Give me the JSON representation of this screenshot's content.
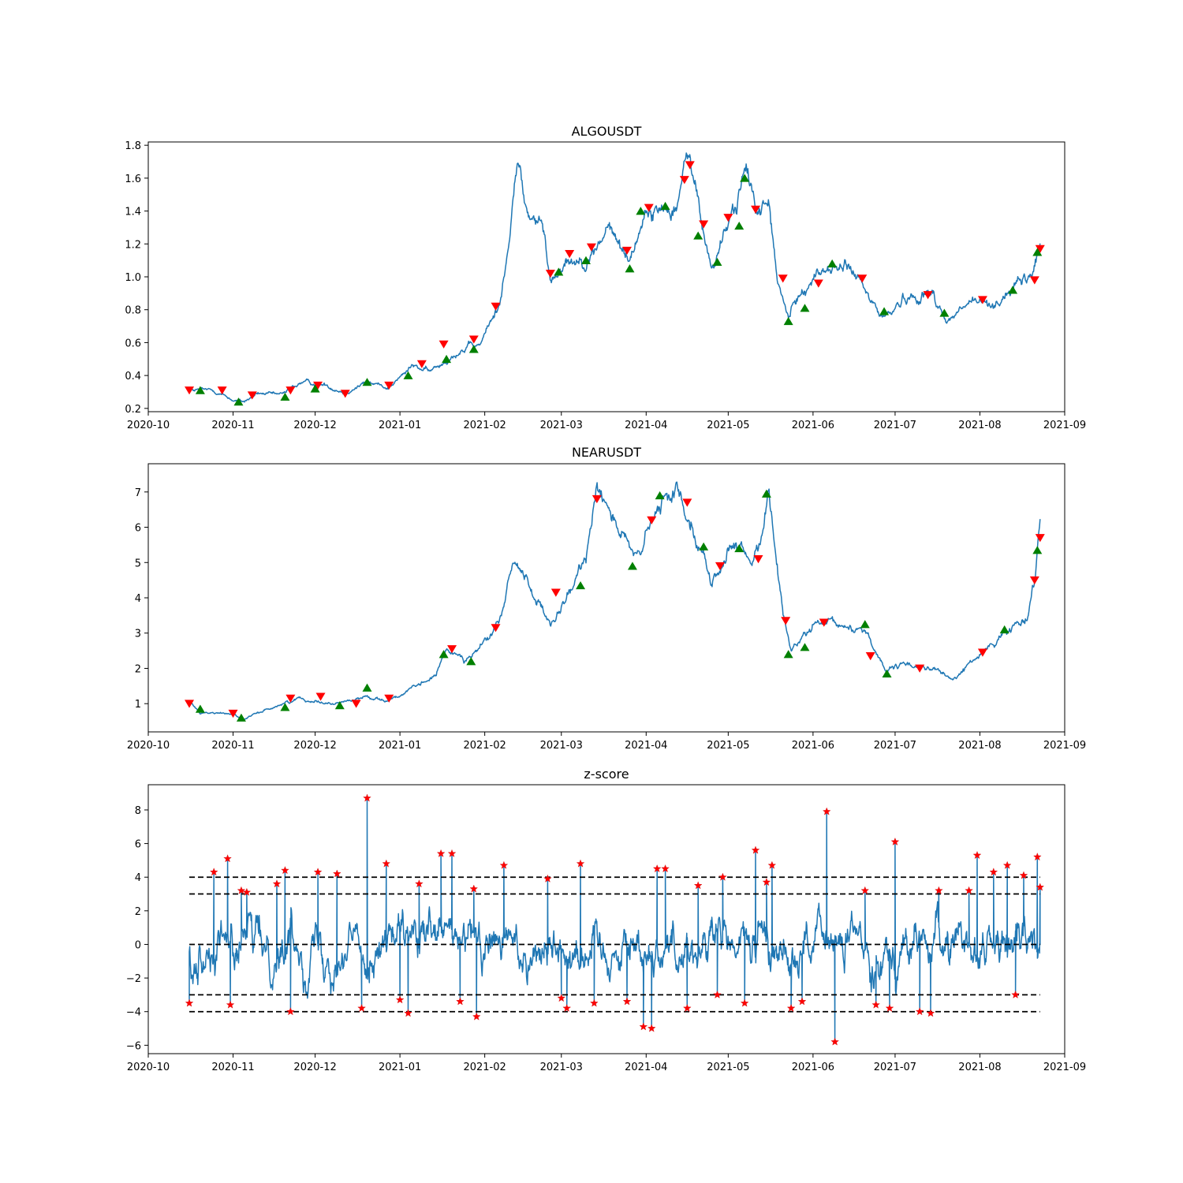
{
  "chart_data": [
    {
      "type": "line",
      "title": "ALGOUSDT",
      "xlabel": "",
      "ylabel": "",
      "xlim": [
        "2020-10-01",
        "2021-09-01"
      ],
      "ylim": [
        0.18,
        1.82
      ],
      "x_ticks": [
        "2020-10",
        "2020-11",
        "2020-12",
        "2021-01",
        "2021-02",
        "2021-03",
        "2021-04",
        "2021-05",
        "2021-06",
        "2021-07",
        "2021-08",
        "2021-09"
      ],
      "y_ticks": [
        0.2,
        0.4,
        0.6,
        0.8,
        1.0,
        1.2,
        1.4,
        1.6,
        1.8
      ],
      "y_tick_labels": [
        "0.2",
        "0.4",
        "0.6",
        "0.8",
        "1.0",
        "1.2",
        "1.4",
        "1.6",
        "1.8"
      ],
      "line_color": "#1f77b4",
      "price_keypoints": [
        {
          "x": "2020-10-16",
          "y": 0.31
        },
        {
          "x": "2020-10-25",
          "y": 0.31
        },
        {
          "x": "2020-11-01",
          "y": 0.25
        },
        {
          "x": "2020-11-05",
          "y": 0.24
        },
        {
          "x": "2020-11-10",
          "y": 0.29
        },
        {
          "x": "2020-11-18",
          "y": 0.28
        },
        {
          "x": "2020-11-26",
          "y": 0.36
        },
        {
          "x": "2020-12-05",
          "y": 0.34
        },
        {
          "x": "2020-12-12",
          "y": 0.3
        },
        {
          "x": "2020-12-20",
          "y": 0.36
        },
        {
          "x": "2020-12-28",
          "y": 0.33
        },
        {
          "x": "2021-01-06",
          "y": 0.46
        },
        {
          "x": "2021-01-12",
          "y": 0.42
        },
        {
          "x": "2021-01-22",
          "y": 0.55
        },
        {
          "x": "2021-01-30",
          "y": 0.58
        },
        {
          "x": "2021-02-06",
          "y": 0.82
        },
        {
          "x": "2021-02-10",
          "y": 1.2
        },
        {
          "x": "2021-02-13",
          "y": 1.74
        },
        {
          "x": "2021-02-16",
          "y": 1.4
        },
        {
          "x": "2021-02-22",
          "y": 1.3
        },
        {
          "x": "2021-02-25",
          "y": 0.98
        },
        {
          "x": "2021-03-02",
          "y": 1.1
        },
        {
          "x": "2021-03-12",
          "y": 1.12
        },
        {
          "x": "2021-03-18",
          "y": 1.3
        },
        {
          "x": "2021-03-26",
          "y": 1.1
        },
        {
          "x": "2021-03-31",
          "y": 1.38
        },
        {
          "x": "2021-04-06",
          "y": 1.4
        },
        {
          "x": "2021-04-12",
          "y": 1.45
        },
        {
          "x": "2021-04-17",
          "y": 1.75
        },
        {
          "x": "2021-04-22",
          "y": 1.25
        },
        {
          "x": "2021-04-25",
          "y": 1.05
        },
        {
          "x": "2021-05-03",
          "y": 1.4
        },
        {
          "x": "2021-05-07",
          "y": 1.64
        },
        {
          "x": "2021-05-12",
          "y": 1.4
        },
        {
          "x": "2021-05-16",
          "y": 1.45
        },
        {
          "x": "2021-05-19",
          "y": 0.95
        },
        {
          "x": "2021-05-23",
          "y": 0.75
        },
        {
          "x": "2021-05-28",
          "y": 0.92
        },
        {
          "x": "2021-06-05",
          "y": 1.05
        },
        {
          "x": "2021-06-15",
          "y": 1.05
        },
        {
          "x": "2021-06-22",
          "y": 0.85
        },
        {
          "x": "2021-06-27",
          "y": 0.75
        },
        {
          "x": "2021-07-05",
          "y": 0.88
        },
        {
          "x": "2021-07-15",
          "y": 0.9
        },
        {
          "x": "2021-07-20",
          "y": 0.72
        },
        {
          "x": "2021-07-28",
          "y": 0.84
        },
        {
          "x": "2021-08-06",
          "y": 0.84
        },
        {
          "x": "2021-08-15",
          "y": 0.95
        },
        {
          "x": "2021-08-20",
          "y": 1.0
        },
        {
          "x": "2021-08-23",
          "y": 1.2
        }
      ],
      "buy_markers": [
        {
          "x": "2020-10-20",
          "y": 0.31
        },
        {
          "x": "2020-11-03",
          "y": 0.24
        },
        {
          "x": "2020-11-20",
          "y": 0.27
        },
        {
          "x": "2020-12-01",
          "y": 0.32
        },
        {
          "x": "2020-12-20",
          "y": 0.36
        },
        {
          "x": "2021-01-04",
          "y": 0.4
        },
        {
          "x": "2021-01-18",
          "y": 0.5
        },
        {
          "x": "2021-01-28",
          "y": 0.56
        },
        {
          "x": "2021-02-28",
          "y": 1.03
        },
        {
          "x": "2021-03-10",
          "y": 1.1
        },
        {
          "x": "2021-03-26",
          "y": 1.05
        },
        {
          "x": "2021-03-30",
          "y": 1.4
        },
        {
          "x": "2021-04-08",
          "y": 1.43
        },
        {
          "x": "2021-04-20",
          "y": 1.25
        },
        {
          "x": "2021-04-27",
          "y": 1.09
        },
        {
          "x": "2021-05-05",
          "y": 1.31
        },
        {
          "x": "2021-05-07",
          "y": 1.6
        },
        {
          "x": "2021-05-23",
          "y": 0.73
        },
        {
          "x": "2021-05-29",
          "y": 0.81
        },
        {
          "x": "2021-06-08",
          "y": 1.08
        },
        {
          "x": "2021-06-27",
          "y": 0.79
        },
        {
          "x": "2021-07-19",
          "y": 0.78
        },
        {
          "x": "2021-08-13",
          "y": 0.92
        },
        {
          "x": "2021-08-22",
          "y": 1.15
        }
      ],
      "sell_markers": [
        {
          "x": "2020-10-16",
          "y": 0.31
        },
        {
          "x": "2020-10-28",
          "y": 0.31
        },
        {
          "x": "2020-11-08",
          "y": 0.28
        },
        {
          "x": "2020-11-22",
          "y": 0.31
        },
        {
          "x": "2020-12-02",
          "y": 0.34
        },
        {
          "x": "2020-12-12",
          "y": 0.29
        },
        {
          "x": "2020-12-28",
          "y": 0.34
        },
        {
          "x": "2021-01-09",
          "y": 0.47
        },
        {
          "x": "2021-01-17",
          "y": 0.59
        },
        {
          "x": "2021-01-28",
          "y": 0.62
        },
        {
          "x": "2021-02-05",
          "y": 0.82
        },
        {
          "x": "2021-02-25",
          "y": 1.02
        },
        {
          "x": "2021-03-04",
          "y": 1.14
        },
        {
          "x": "2021-03-12",
          "y": 1.18
        },
        {
          "x": "2021-03-25",
          "y": 1.16
        },
        {
          "x": "2021-04-02",
          "y": 1.42
        },
        {
          "x": "2021-04-15",
          "y": 1.59
        },
        {
          "x": "2021-04-17",
          "y": 1.68
        },
        {
          "x": "2021-04-22",
          "y": 1.32
        },
        {
          "x": "2021-05-01",
          "y": 1.36
        },
        {
          "x": "2021-05-11",
          "y": 1.41
        },
        {
          "x": "2021-05-21",
          "y": 0.99
        },
        {
          "x": "2021-06-03",
          "y": 0.96
        },
        {
          "x": "2021-06-19",
          "y": 0.99
        },
        {
          "x": "2021-07-13",
          "y": 0.89
        },
        {
          "x": "2021-08-02",
          "y": 0.86
        },
        {
          "x": "2021-08-21",
          "y": 0.98
        },
        {
          "x": "2021-08-23",
          "y": 1.17
        }
      ]
    },
    {
      "type": "line",
      "title": "NEARUSDT",
      "xlabel": "",
      "ylabel": "",
      "xlim": [
        "2020-10-01",
        "2021-09-01"
      ],
      "ylim": [
        0.2,
        7.8
      ],
      "x_ticks": [
        "2020-10",
        "2020-11",
        "2020-12",
        "2021-01",
        "2021-02",
        "2021-03",
        "2021-04",
        "2021-05",
        "2021-06",
        "2021-07",
        "2021-08",
        "2021-09"
      ],
      "y_ticks": [
        1,
        2,
        3,
        4,
        5,
        6,
        7
      ],
      "y_tick_labels": [
        "1",
        "2",
        "3",
        "4",
        "5",
        "6",
        "7"
      ],
      "line_color": "#1f77b4",
      "price_keypoints": [
        {
          "x": "2020-10-16",
          "y": 1.05
        },
        {
          "x": "2020-10-20",
          "y": 0.75
        },
        {
          "x": "2020-11-01",
          "y": 0.72
        },
        {
          "x": "2020-11-05",
          "y": 0.55
        },
        {
          "x": "2020-11-12",
          "y": 0.8
        },
        {
          "x": "2020-11-25",
          "y": 1.15
        },
        {
          "x": "2020-12-08",
          "y": 1.0
        },
        {
          "x": "2020-12-20",
          "y": 1.2
        },
        {
          "x": "2020-12-28",
          "y": 1.1
        },
        {
          "x": "2021-01-08",
          "y": 1.5
        },
        {
          "x": "2021-01-14",
          "y": 1.8
        },
        {
          "x": "2021-01-18",
          "y": 2.5
        },
        {
          "x": "2021-01-27",
          "y": 2.3
        },
        {
          "x": "2021-02-06",
          "y": 3.2
        },
        {
          "x": "2021-02-12",
          "y": 5.1
        },
        {
          "x": "2021-02-18",
          "y": 4.3
        },
        {
          "x": "2021-02-25",
          "y": 3.1
        },
        {
          "x": "2021-03-05",
          "y": 4.2
        },
        {
          "x": "2021-03-10",
          "y": 5.2
        },
        {
          "x": "2021-03-14",
          "y": 7.4
        },
        {
          "x": "2021-03-22",
          "y": 6.0
        },
        {
          "x": "2021-03-28",
          "y": 5.0
        },
        {
          "x": "2021-04-05",
          "y": 6.4
        },
        {
          "x": "2021-04-12",
          "y": 7.1
        },
        {
          "x": "2021-04-18",
          "y": 6.2
        },
        {
          "x": "2021-04-25",
          "y": 4.4
        },
        {
          "x": "2021-05-02",
          "y": 5.4
        },
        {
          "x": "2021-05-10",
          "y": 5.0
        },
        {
          "x": "2021-05-16",
          "y": 6.9
        },
        {
          "x": "2021-05-20",
          "y": 4.2
        },
        {
          "x": "2021-05-24",
          "y": 2.5
        },
        {
          "x": "2021-06-01",
          "y": 3.2
        },
        {
          "x": "2021-06-10",
          "y": 3.2
        },
        {
          "x": "2021-06-20",
          "y": 3.1
        },
        {
          "x": "2021-06-28",
          "y": 1.9
        },
        {
          "x": "2021-07-05",
          "y": 2.1
        },
        {
          "x": "2021-07-15",
          "y": 2.0
        },
        {
          "x": "2021-07-22",
          "y": 1.65
        },
        {
          "x": "2021-08-01",
          "y": 2.4
        },
        {
          "x": "2021-08-12",
          "y": 3.1
        },
        {
          "x": "2021-08-18",
          "y": 3.5
        },
        {
          "x": "2021-08-21",
          "y": 4.5
        },
        {
          "x": "2021-08-23",
          "y": 6.3
        }
      ],
      "buy_markers": [
        {
          "x": "2020-10-20",
          "y": 0.85
        },
        {
          "x": "2020-11-04",
          "y": 0.6
        },
        {
          "x": "2020-11-20",
          "y": 0.9
        },
        {
          "x": "2020-12-10",
          "y": 0.95
        },
        {
          "x": "2020-12-20",
          "y": 1.45
        },
        {
          "x": "2021-01-17",
          "y": 2.4
        },
        {
          "x": "2021-01-27",
          "y": 2.2
        },
        {
          "x": "2021-03-08",
          "y": 4.35
        },
        {
          "x": "2021-03-27",
          "y": 4.9
        },
        {
          "x": "2021-04-06",
          "y": 6.9
        },
        {
          "x": "2021-04-22",
          "y": 5.45
        },
        {
          "x": "2021-05-05",
          "y": 5.4
        },
        {
          "x": "2021-05-15",
          "y": 6.95
        },
        {
          "x": "2021-05-23",
          "y": 2.4
        },
        {
          "x": "2021-05-29",
          "y": 2.6
        },
        {
          "x": "2021-06-20",
          "y": 3.25
        },
        {
          "x": "2021-06-28",
          "y": 1.85
        },
        {
          "x": "2021-08-10",
          "y": 3.1
        },
        {
          "x": "2021-08-22",
          "y": 5.35
        }
      ],
      "sell_markers": [
        {
          "x": "2020-10-16",
          "y": 1.0
        },
        {
          "x": "2020-11-01",
          "y": 0.72
        },
        {
          "x": "2020-11-22",
          "y": 1.15
        },
        {
          "x": "2020-12-03",
          "y": 1.2
        },
        {
          "x": "2020-12-16",
          "y": 1.0
        },
        {
          "x": "2020-12-28",
          "y": 1.15
        },
        {
          "x": "2021-01-20",
          "y": 2.55
        },
        {
          "x": "2021-02-05",
          "y": 3.15
        },
        {
          "x": "2021-02-27",
          "y": 4.15
        },
        {
          "x": "2021-03-14",
          "y": 6.8
        },
        {
          "x": "2021-04-03",
          "y": 6.2
        },
        {
          "x": "2021-04-16",
          "y": 6.7
        },
        {
          "x": "2021-04-28",
          "y": 4.9
        },
        {
          "x": "2021-05-12",
          "y": 5.1
        },
        {
          "x": "2021-05-22",
          "y": 3.35
        },
        {
          "x": "2021-06-05",
          "y": 3.3
        },
        {
          "x": "2021-06-22",
          "y": 2.35
        },
        {
          "x": "2021-07-10",
          "y": 2.0
        },
        {
          "x": "2021-08-02",
          "y": 2.45
        },
        {
          "x": "2021-08-21",
          "y": 4.5
        },
        {
          "x": "2021-08-23",
          "y": 5.7
        }
      ]
    },
    {
      "type": "line",
      "title": "z-score",
      "xlabel": "",
      "ylabel": "",
      "xlim": [
        "2020-10-01",
        "2021-09-01"
      ],
      "ylim": [
        -6.5,
        9.5
      ],
      "x_ticks": [
        "2020-10",
        "2020-11",
        "2020-12",
        "2021-01",
        "2021-02",
        "2021-03",
        "2021-04",
        "2021-05",
        "2021-06",
        "2021-07",
        "2021-08",
        "2021-09"
      ],
      "y_ticks": [
        -6,
        -4,
        -2,
        0,
        2,
        4,
        6,
        8
      ],
      "y_tick_labels": [
        "−6",
        "−4",
        "−2",
        "0",
        "2",
        "4",
        "6",
        "8"
      ],
      "line_color": "#1f77b4",
      "threshold_lines": [
        -4,
        -3,
        0,
        3,
        4
      ],
      "threshold_range": [
        "2020-10-16",
        "2021-08-23"
      ],
      "spikes": [
        {
          "x": "2020-10-16",
          "y": -3.5
        },
        {
          "x": "2020-10-25",
          "y": 4.3
        },
        {
          "x": "2020-10-30",
          "y": 5.1
        },
        {
          "x": "2020-10-31",
          "y": -3.6
        },
        {
          "x": "2020-11-04",
          "y": 3.2
        },
        {
          "x": "2020-11-06",
          "y": 3.1
        },
        {
          "x": "2020-11-17",
          "y": 3.6
        },
        {
          "x": "2020-11-20",
          "y": 4.4
        },
        {
          "x": "2020-11-22",
          "y": -4.0
        },
        {
          "x": "2020-12-02",
          "y": 4.3
        },
        {
          "x": "2020-12-09",
          "y": 4.2
        },
        {
          "x": "2020-12-18",
          "y": -3.8
        },
        {
          "x": "2020-12-20",
          "y": 8.7
        },
        {
          "x": "2020-12-27",
          "y": 4.8
        },
        {
          "x": "2021-01-01",
          "y": -3.3
        },
        {
          "x": "2021-01-04",
          "y": -4.1
        },
        {
          "x": "2021-01-08",
          "y": 3.6
        },
        {
          "x": "2021-01-16",
          "y": 5.4
        },
        {
          "x": "2021-01-20",
          "y": 5.4
        },
        {
          "x": "2021-01-23",
          "y": -3.4
        },
        {
          "x": "2021-01-28",
          "y": 3.3
        },
        {
          "x": "2021-01-29",
          "y": -4.3
        },
        {
          "x": "2021-02-08",
          "y": 4.7
        },
        {
          "x": "2021-02-24",
          "y": 3.9
        },
        {
          "x": "2021-03-01",
          "y": -3.2
        },
        {
          "x": "2021-03-03",
          "y": -3.8
        },
        {
          "x": "2021-03-08",
          "y": 4.8
        },
        {
          "x": "2021-03-13",
          "y": -3.5
        },
        {
          "x": "2021-03-25",
          "y": -3.4
        },
        {
          "x": "2021-03-31",
          "y": -4.9
        },
        {
          "x": "2021-04-03",
          "y": -5.0
        },
        {
          "x": "2021-04-05",
          "y": 4.5
        },
        {
          "x": "2021-04-08",
          "y": 4.5
        },
        {
          "x": "2021-04-16",
          "y": -3.8
        },
        {
          "x": "2021-04-20",
          "y": 3.5
        },
        {
          "x": "2021-04-27",
          "y": -3.0
        },
        {
          "x": "2021-04-29",
          "y": 4.0
        },
        {
          "x": "2021-05-07",
          "y": -3.5
        },
        {
          "x": "2021-05-11",
          "y": 5.6
        },
        {
          "x": "2021-05-15",
          "y": 3.7
        },
        {
          "x": "2021-05-17",
          "y": 4.7
        },
        {
          "x": "2021-05-24",
          "y": -3.8
        },
        {
          "x": "2021-05-28",
          "y": -3.4
        },
        {
          "x": "2021-06-06",
          "y": 7.9
        },
        {
          "x": "2021-06-09",
          "y": -5.8
        },
        {
          "x": "2021-06-20",
          "y": 3.2
        },
        {
          "x": "2021-06-24",
          "y": -3.6
        },
        {
          "x": "2021-06-29",
          "y": -3.8
        },
        {
          "x": "2021-07-01",
          "y": 6.1
        },
        {
          "x": "2021-07-10",
          "y": -4.0
        },
        {
          "x": "2021-07-14",
          "y": -4.1
        },
        {
          "x": "2021-07-17",
          "y": 3.2
        },
        {
          "x": "2021-07-28",
          "y": 3.2
        },
        {
          "x": "2021-07-31",
          "y": 5.3
        },
        {
          "x": "2021-08-06",
          "y": 4.3
        },
        {
          "x": "2021-08-11",
          "y": 4.7
        },
        {
          "x": "2021-08-14",
          "y": -3.0
        },
        {
          "x": "2021-08-17",
          "y": 4.1
        },
        {
          "x": "2021-08-22",
          "y": 5.2
        },
        {
          "x": "2021-08-23",
          "y": 3.4
        }
      ]
    }
  ]
}
